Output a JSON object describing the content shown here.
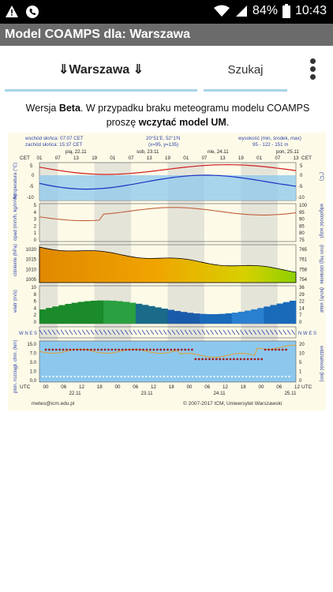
{
  "status_bar": {
    "battery": "84%",
    "time": "10:43",
    "icons": [
      "warning-icon",
      "phone-icon",
      "wifi-icon",
      "signal-icon",
      "battery-icon"
    ]
  },
  "app_bar": {
    "title": "Model COAMPS dla: Warszawa"
  },
  "tabs": {
    "city_label": "⇓Warszawa ⇓",
    "search_label": "Szukaj",
    "accent_color": "#a8d4ea"
  },
  "notice": {
    "prefix": "Wersja ",
    "beta": "Beta",
    "middle": ". W przypadku braku meteogramu modelu COAMPS proszę ",
    "link": "wczytać model UM",
    "suffix": "."
  },
  "meteogram": {
    "sunrise": "wschód słońca: 07:07 CET",
    "sunset": "zachód słońca: 15:37 CET",
    "coords": "20°51'E, 52°1'N",
    "grid": "(x=95, y=135)",
    "height_label": "wysokość (min, środek, max)",
    "height_values": "95 - 122 - 151 m",
    "cet": "CET",
    "utc": "UTC",
    "days_top": [
      "pią, 22.11",
      "sob, 23.11",
      "nie, 24.11",
      "pon, 25.11"
    ],
    "hours_top": [
      "01",
      "07",
      "13",
      "19",
      "01",
      "07",
      "13",
      "19",
      "01",
      "07",
      "13",
      "19",
      "01",
      "07",
      "13"
    ],
    "hours_bottom": [
      "00",
      "06",
      "12",
      "18",
      "00",
      "06",
      "12",
      "18",
      "00",
      "06",
      "12",
      "18",
      "00",
      "06",
      "12"
    ],
    "dates_bottom": [
      "22.11",
      "23.11",
      "24.11",
      "25.11"
    ],
    "panels": {
      "temperature": {
        "left_label": "temperatura (°C)",
        "right_label": "(°C)",
        "ticks": [
          "5",
          "0",
          "-5",
          "-10"
        ]
      },
      "precip": {
        "left_label": "opad (mm/h, kg/m²/h)",
        "right_label": "wilgotność wzgl.",
        "ticks_left": [
          "5",
          "4",
          "3",
          "2",
          "1",
          "0"
        ],
        "ticks_right": [
          "100",
          "95",
          "90",
          "85",
          "80",
          "75"
        ]
      },
      "pressure": {
        "left_label": "ciśnienie (hPa)",
        "right_label": "(mm Hg) ciśnienie",
        "ticks_left": [
          "1020",
          "1015",
          "1010",
          "1005"
        ],
        "ticks_right": [
          "765",
          "761",
          "758",
          "754"
        ]
      },
      "wind": {
        "left_label": "wiatr (m/s)",
        "right_label": "(km/h) wiatr",
        "ticks_left": [
          "10",
          "8",
          "6",
          "4",
          "2",
          "0"
        ],
        "ticks_right": [
          "36",
          "29",
          "22",
          "14",
          "7",
          "0"
        ]
      },
      "direction": {
        "compass_left": "W N E S",
        "compass_right": "N W E S"
      },
      "clouds": {
        "left_label": "pion. rozciągł. chm. (km)",
        "right_label": "widzialność (km)",
        "ticks_left": [
          "15.0",
          "7.0",
          "3.0",
          "1.0",
          "0.0"
        ],
        "ticks_right": [
          "20",
          "10",
          "5",
          "1",
          "0"
        ]
      }
    },
    "colors": {
      "temp_line": "#d02020",
      "dew_line": "#2030c0",
      "humidity_line": "#c0603a",
      "pressure_fill": "#f0a000",
      "wind_fill": "#1a8a2a",
      "sky_fill": "#8cc8ee",
      "night_band": "#c8c8c8"
    },
    "footer_email": "meteo@icm.edu.pl",
    "footer_copy": "© 2007-2017 ICM, Uniwersytet Warszawski"
  }
}
